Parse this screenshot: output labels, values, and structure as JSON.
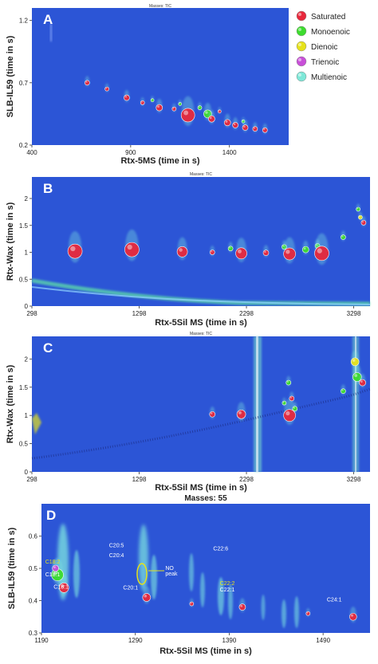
{
  "legend": {
    "items": [
      {
        "label": "Saturated",
        "color": "#e8283c"
      },
      {
        "label": "Monoenoic",
        "color": "#3ddc2e"
      },
      {
        "label": "Dienoic",
        "color": "#e6e21a"
      },
      {
        "label": "Trienoic",
        "color": "#c84fd8"
      },
      {
        "label": "Multienoic",
        "color": "#7ee8d8"
      }
    ]
  },
  "chart_data": [
    {
      "type": "scatter",
      "panel_label": "A",
      "title": "Masses:  TIC",
      "xlabel": "Rtx-5MS (time in s)",
      "ylabel": "SLB-IL59 (time in s)",
      "xlim": [
        400,
        1700
      ],
      "ylim": [
        0.2,
        1.3
      ],
      "xticks": [
        "400",
        "900",
        "1400"
      ],
      "yticks": [
        "0.2",
        "0.7",
        "1.2"
      ],
      "points": [
        {
          "x": 680,
          "y": 0.7,
          "r": 3,
          "cls": "Saturated"
        },
        {
          "x": 780,
          "y": 0.65,
          "r": 2.5,
          "cls": "Saturated"
        },
        {
          "x": 880,
          "y": 0.58,
          "r": 3.5,
          "cls": "Saturated"
        },
        {
          "x": 960,
          "y": 0.54,
          "r": 2.5,
          "cls": "Saturated"
        },
        {
          "x": 1010,
          "y": 0.56,
          "r": 2,
          "cls": "Monoenoic"
        },
        {
          "x": 1045,
          "y": 0.5,
          "r": 4,
          "cls": "Saturated"
        },
        {
          "x": 1120,
          "y": 0.49,
          "r": 2.5,
          "cls": "Saturated"
        },
        {
          "x": 1150,
          "y": 0.53,
          "r": 2,
          "cls": "Monoenoic"
        },
        {
          "x": 1190,
          "y": 0.44,
          "r": 8.5,
          "cls": "Saturated"
        },
        {
          "x": 1250,
          "y": 0.5,
          "r": 2.5,
          "cls": "Monoenoic"
        },
        {
          "x": 1290,
          "y": 0.45,
          "r": 5,
          "cls": "Monoenoic"
        },
        {
          "x": 1310,
          "y": 0.41,
          "r": 4,
          "cls": "Saturated"
        },
        {
          "x": 1350,
          "y": 0.47,
          "r": 2,
          "cls": "Saturated"
        },
        {
          "x": 1390,
          "y": 0.38,
          "r": 4,
          "cls": "Saturated"
        },
        {
          "x": 1430,
          "y": 0.36,
          "r": 3.5,
          "cls": "Saturated"
        },
        {
          "x": 1470,
          "y": 0.39,
          "r": 2,
          "cls": "Monoenoic"
        },
        {
          "x": 1480,
          "y": 0.34,
          "r": 3.5,
          "cls": "Saturated"
        },
        {
          "x": 1530,
          "y": 0.33,
          "r": 3,
          "cls": "Saturated"
        },
        {
          "x": 1580,
          "y": 0.32,
          "r": 3,
          "cls": "Saturated"
        }
      ]
    },
    {
      "type": "scatter",
      "panel_label": "B",
      "title": "Masses:  TIC",
      "xlabel": "Rtx-5Sil MS (time in s)",
      "ylabel": "Rtx-Wax (time in s)",
      "xlim": [
        298,
        3450
      ],
      "ylim": [
        0,
        2.4
      ],
      "xticks": [
        "298",
        "1298",
        "2298",
        "3298"
      ],
      "yticks": [
        "0",
        "0.5",
        "1",
        "1.5",
        "2"
      ],
      "points": [
        {
          "x": 700,
          "y": 1.02,
          "r": 9,
          "cls": "Saturated"
        },
        {
          "x": 1230,
          "y": 1.05,
          "r": 9,
          "cls": "Saturated"
        },
        {
          "x": 1700,
          "y": 1.01,
          "r": 6.5,
          "cls": "Saturated"
        },
        {
          "x": 1980,
          "y": 1.0,
          "r": 3,
          "cls": "Saturated"
        },
        {
          "x": 2150,
          "y": 1.07,
          "r": 3,
          "cls": "Monoenoic"
        },
        {
          "x": 2250,
          "y": 0.98,
          "r": 7,
          "cls": "Saturated"
        },
        {
          "x": 2480,
          "y": 0.99,
          "r": 3.5,
          "cls": "Saturated"
        },
        {
          "x": 2650,
          "y": 1.1,
          "r": 3,
          "cls": "Monoenoic"
        },
        {
          "x": 2700,
          "y": 0.97,
          "r": 7.5,
          "cls": "Saturated"
        },
        {
          "x": 2850,
          "y": 1.05,
          "r": 4,
          "cls": "Monoenoic"
        },
        {
          "x": 2960,
          "y": 1.12,
          "r": 3,
          "cls": "Monoenoic"
        },
        {
          "x": 3000,
          "y": 0.98,
          "r": 9,
          "cls": "Saturated"
        },
        {
          "x": 3200,
          "y": 1.28,
          "r": 3,
          "cls": "Monoenoic"
        },
        {
          "x": 3340,
          "y": 1.8,
          "r": 2.5,
          "cls": "Monoenoic"
        },
        {
          "x": 3360,
          "y": 1.65,
          "r": 2.5,
          "cls": "Dienoic"
        },
        {
          "x": 3390,
          "y": 1.55,
          "r": 3,
          "cls": "Saturated"
        }
      ]
    },
    {
      "type": "scatter",
      "panel_label": "C",
      "title": "Masses:  TIC",
      "xlabel": "Rtx-5Sil MS (time in s)",
      "ylabel": "Rtx-Wax (time in s)",
      "xlim": [
        298,
        3450
      ],
      "ylim": [
        0,
        2.4
      ],
      "xticks": [
        "298",
        "1298",
        "2298",
        "3298"
      ],
      "yticks": [
        "0",
        "0.5",
        "1",
        "1.5",
        "2"
      ],
      "points": [
        {
          "x": 1980,
          "y": 1.02,
          "r": 3.5,
          "cls": "Saturated"
        },
        {
          "x": 2250,
          "y": 1.02,
          "r": 5.5,
          "cls": "Saturated"
        },
        {
          "x": 2700,
          "y": 1.0,
          "r": 7.5,
          "cls": "Saturated"
        },
        {
          "x": 2720,
          "y": 1.3,
          "r": 3,
          "cls": "Saturated"
        },
        {
          "x": 2690,
          "y": 1.58,
          "r": 3,
          "cls": "Monoenoic"
        },
        {
          "x": 2650,
          "y": 1.22,
          "r": 2.5,
          "cls": "Monoenoic"
        },
        {
          "x": 2750,
          "y": 1.12,
          "r": 3,
          "cls": "Monoenoic"
        },
        {
          "x": 3200,
          "y": 1.43,
          "r": 3,
          "cls": "Monoenoic"
        },
        {
          "x": 3330,
          "y": 1.68,
          "r": 5.5,
          "cls": "Monoenoic"
        },
        {
          "x": 3310,
          "y": 1.95,
          "r": 5,
          "cls": "Dienoic"
        },
        {
          "x": 3380,
          "y": 1.58,
          "r": 4,
          "cls": "Saturated"
        }
      ]
    },
    {
      "type": "scatter",
      "panel_label": "D",
      "title": "Masses:  55",
      "xlabel": "Rtx-5Sil MS (time in s)",
      "ylabel": "SLB-IL59 (time in s)",
      "xlim": [
        1190,
        1540
      ],
      "ylim": [
        0.3,
        0.7
      ],
      "xticks": [
        "1190",
        "1290",
        "1390",
        "1490"
      ],
      "yticks": [
        "0.3",
        "0.4",
        "0.5",
        "0.6"
      ],
      "points": [
        {
          "x": 1214,
          "y": 0.44,
          "r": 6,
          "cls": "Saturated"
        },
        {
          "x": 1207,
          "y": 0.48,
          "r": 7.5,
          "cls": "Monoenoic"
        },
        {
          "x": 1205,
          "y": 0.5,
          "r": 4,
          "cls": "Trienoic"
        },
        {
          "x": 1302,
          "y": 0.41,
          "r": 5,
          "cls": "Saturated"
        },
        {
          "x": 1350,
          "y": 0.39,
          "r": 2.5,
          "cls": "Saturated"
        },
        {
          "x": 1404,
          "y": 0.38,
          "r": 4,
          "cls": "Saturated"
        },
        {
          "x": 1474,
          "y": 0.36,
          "r": 2.5,
          "cls": "Saturated"
        },
        {
          "x": 1522,
          "y": 0.35,
          "r": 4.5,
          "cls": "Saturated"
        }
      ],
      "annotations": [
        {
          "text": "C18:2",
          "x": 1194,
          "y": 0.515,
          "color": "#e6e21a"
        },
        {
          "text": "C18:1",
          "x": 1194,
          "y": 0.475,
          "color": "#ffffff"
        },
        {
          "text": "C18:1",
          "x": 1203,
          "y": 0.437,
          "color": "#ffffff"
        },
        {
          "text": "C20:5",
          "x": 1262,
          "y": 0.565,
          "color": "#ffffff"
        },
        {
          "text": "C20:4",
          "x": 1262,
          "y": 0.535,
          "color": "#ffffff"
        },
        {
          "text": "C20:1",
          "x": 1277,
          "y": 0.435,
          "color": "#ffffff"
        },
        {
          "text": "NO",
          "x": 1322,
          "y": 0.495,
          "color": "#ffffff"
        },
        {
          "text": "peak",
          "x": 1322,
          "y": 0.478,
          "color": "#ffffff"
        },
        {
          "text": "C22:6",
          "x": 1373,
          "y": 0.555,
          "color": "#ffffff"
        },
        {
          "text": "C22:2",
          "x": 1380,
          "y": 0.448,
          "color": "#e6e21a"
        },
        {
          "text": "C22:1",
          "x": 1380,
          "y": 0.428,
          "color": "#ffffff"
        },
        {
          "text": "C24:1",
          "x": 1494,
          "y": 0.398,
          "color": "#ffffff"
        }
      ]
    }
  ]
}
